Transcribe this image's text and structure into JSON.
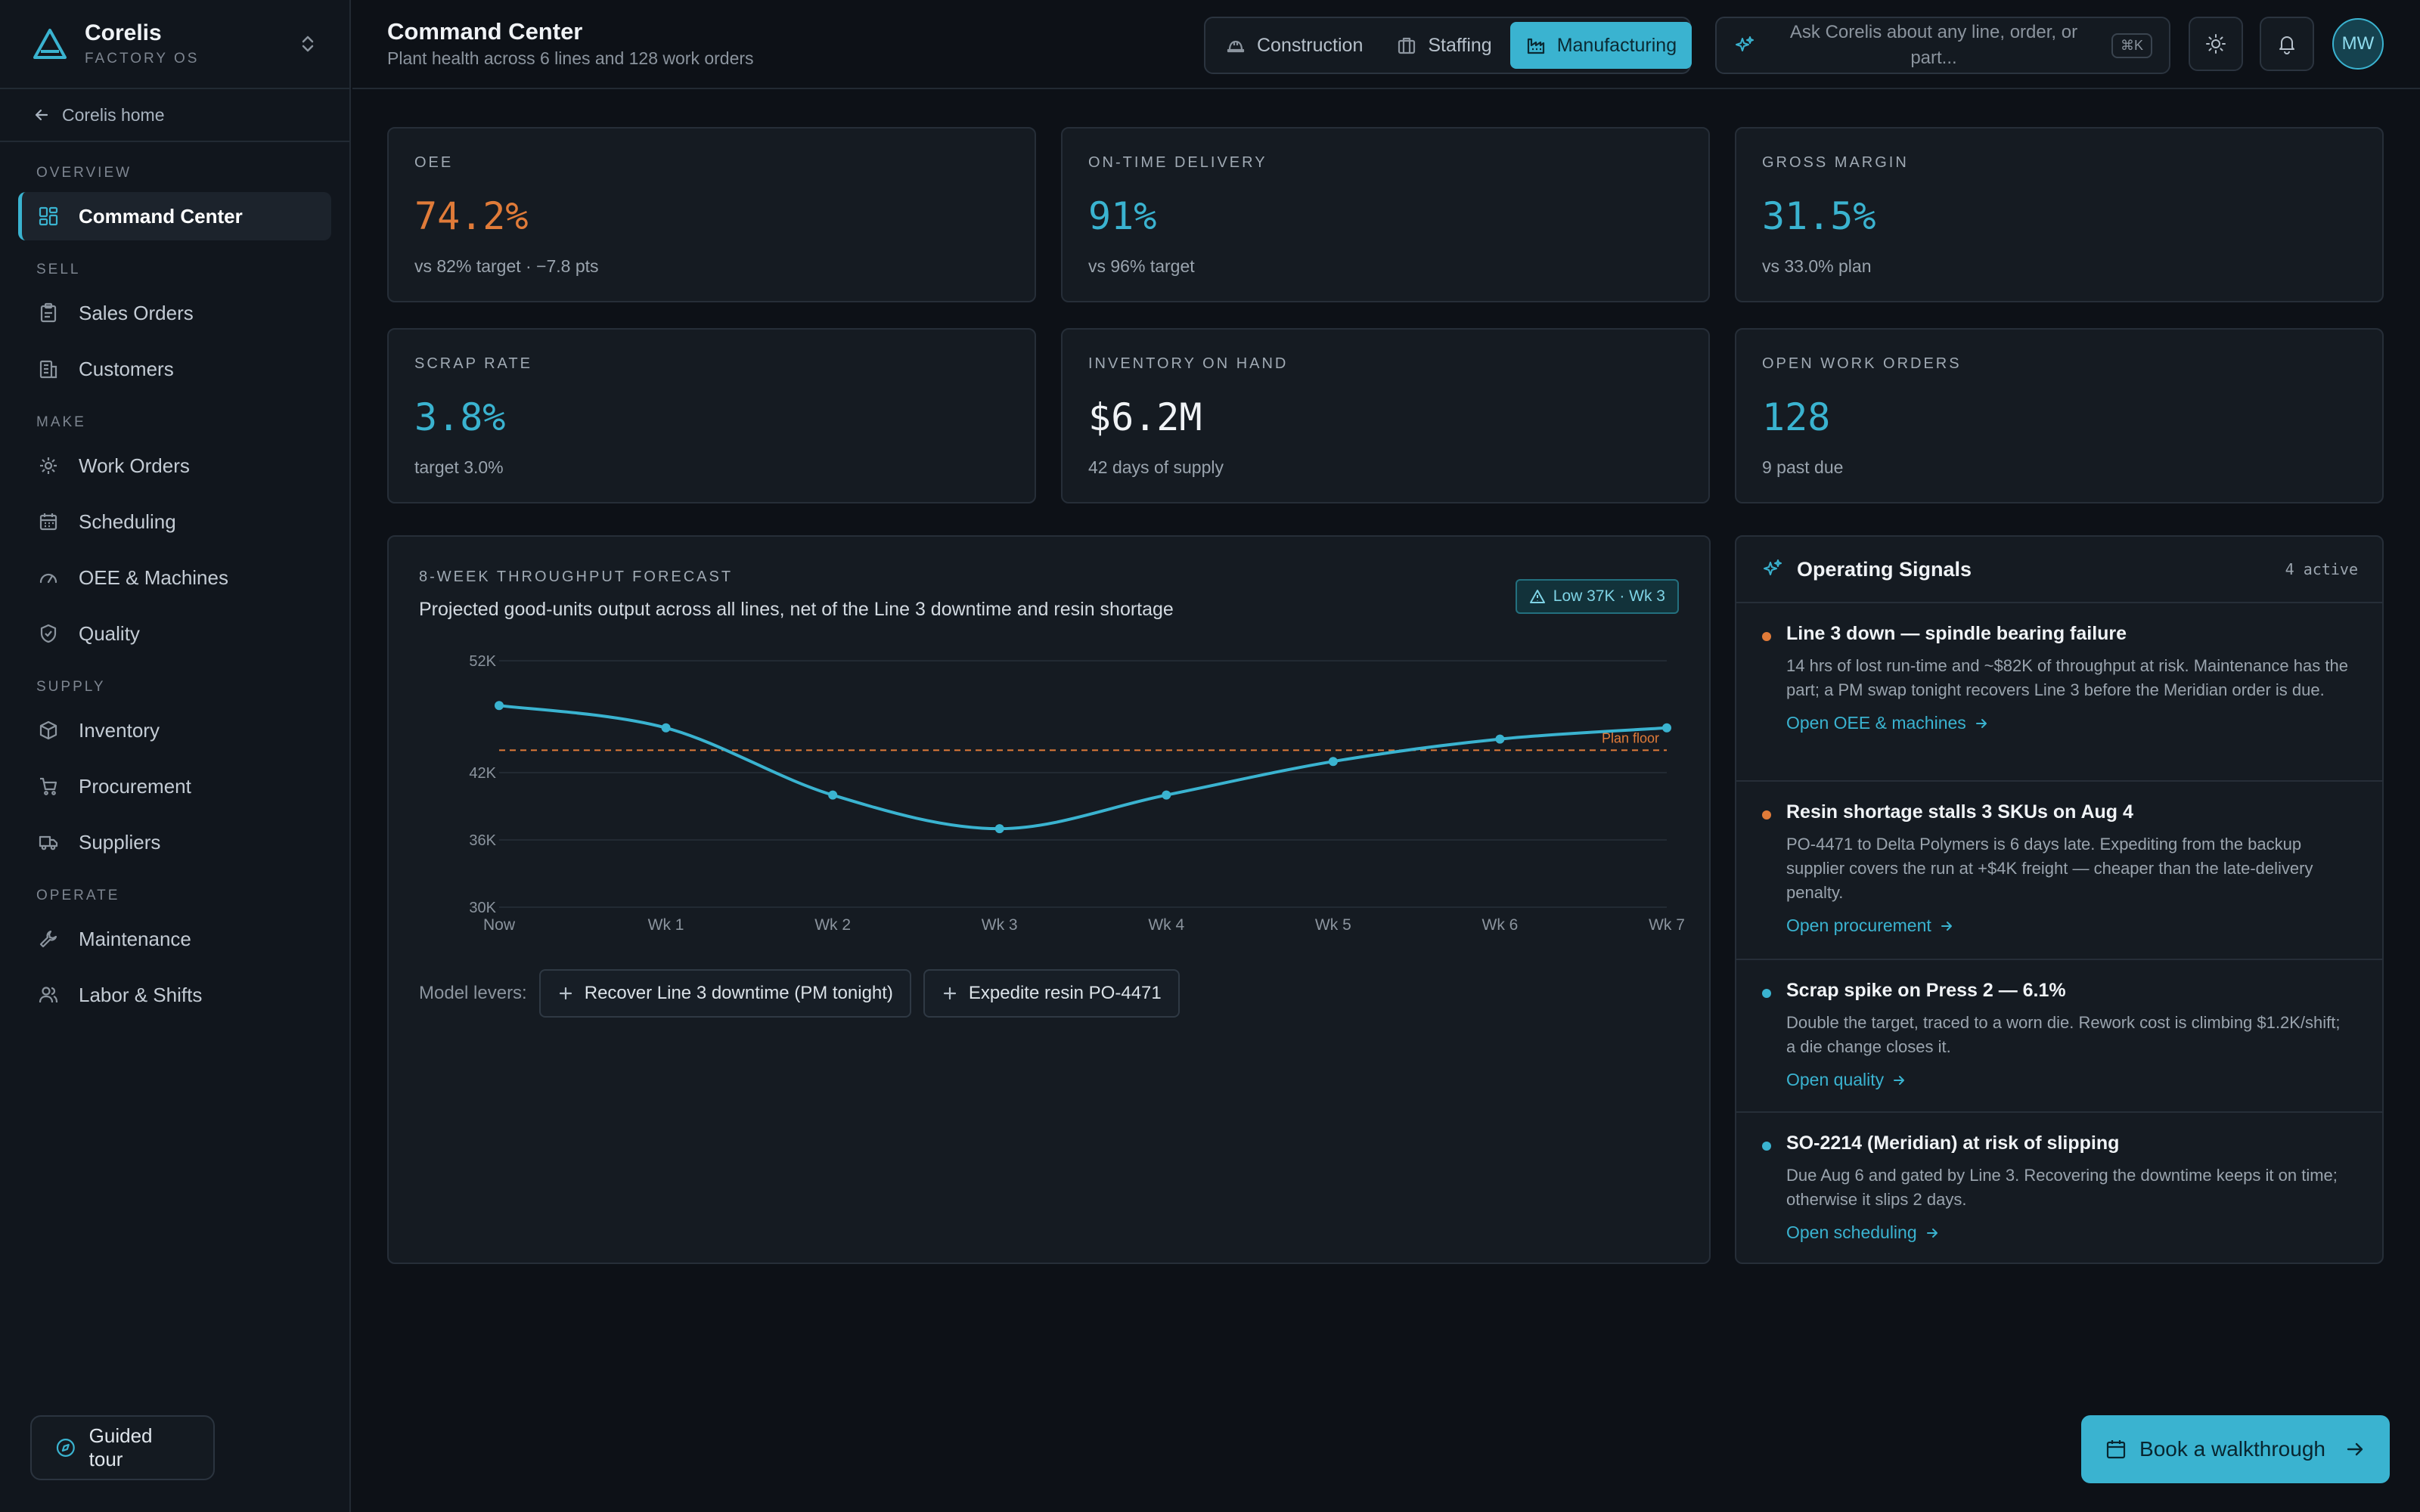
{
  "brand": {
    "name": "Corelis",
    "subtitle": "FACTORY OS"
  },
  "home_link": "Corelis home",
  "nav": {
    "overview": {
      "title": "OVERVIEW",
      "items": [
        {
          "label": "Command Center",
          "icon": "grid-icon"
        }
      ]
    },
    "sell": {
      "title": "SELL",
      "items": [
        {
          "label": "Sales Orders",
          "icon": "clipboard-icon"
        },
        {
          "label": "Customers",
          "icon": "building-icon"
        }
      ]
    },
    "make": {
      "title": "MAKE",
      "items": [
        {
          "label": "Work Orders",
          "icon": "gear-icon"
        },
        {
          "label": "Scheduling",
          "icon": "calendar-icon"
        },
        {
          "label": "OEE & Machines",
          "icon": "gauge-icon"
        },
        {
          "label": "Quality",
          "icon": "shield-check-icon"
        }
      ]
    },
    "supply": {
      "title": "SUPPLY",
      "items": [
        {
          "label": "Inventory",
          "icon": "box-icon"
        },
        {
          "label": "Procurement",
          "icon": "cart-icon"
        },
        {
          "label": "Suppliers",
          "icon": "truck-icon"
        }
      ]
    },
    "operate": {
      "title": "OPERATE",
      "items": [
        {
          "label": "Maintenance",
          "icon": "wrench-icon"
        },
        {
          "label": "Labor & Shifts",
          "icon": "users-icon"
        }
      ]
    }
  },
  "guided_tour": "Guided tour",
  "header": {
    "title": "Command Center",
    "subtitle": "Plant health across 6 lines and 128 work orders",
    "tabs": [
      {
        "label": "Construction",
        "icon": "hardhat-icon"
      },
      {
        "label": "Staffing",
        "icon": "briefcase-icon"
      },
      {
        "label": "Manufacturing",
        "icon": "factory-icon",
        "active": true
      }
    ],
    "ask_placeholder": "Ask Corelis about any line, order, or part...",
    "shortcut": "⌘K",
    "avatar": "MW"
  },
  "kpis": [
    {
      "label": "OEE",
      "value": "74.2%",
      "note": "vs 82% target · −7.8 pts",
      "color": "#e07b39"
    },
    {
      "label": "ON-TIME DELIVERY",
      "value": "91%",
      "note": "vs 96% target",
      "color": "#3ab3d0"
    },
    {
      "label": "GROSS MARGIN",
      "value": "31.5%",
      "note": "vs 33.0% plan",
      "color": "#3ab3d0"
    },
    {
      "label": "SCRAP RATE",
      "value": "3.8%",
      "note": "target 3.0%",
      "color": "#3ab3d0"
    },
    {
      "label": "INVENTORY ON HAND",
      "value": "$6.2M",
      "note": "42 days of supply",
      "color": "#f0f3f6"
    },
    {
      "label": "OPEN WORK ORDERS",
      "value": "128",
      "note": "9 past due",
      "color": "#3ab3d0"
    }
  ],
  "forecast": {
    "label": "8-WEEK THROUGHPUT FORECAST",
    "subtitle": "Projected good-units output across all lines, net of the Line 3 downtime and resin shortage",
    "badge": "Low 37K · Wk 3",
    "levers_label": "Model levers:",
    "levers": [
      "Recover Line 3 downtime (PM tonight)",
      "Expedite resin PO-4471"
    ]
  },
  "chart_data": {
    "type": "line",
    "x": [
      "Now",
      "Wk 1",
      "Wk 2",
      "Wk 3",
      "Wk 4",
      "Wk 5",
      "Wk 6",
      "Wk 7"
    ],
    "series": [
      {
        "values": [
          48000,
          46000,
          40000,
          37000,
          40000,
          43000,
          45000,
          46000
        ],
        "color": "#3ab3d0"
      }
    ],
    "reference_line": {
      "label": "Plan floor",
      "value": 44000,
      "color": "#e07b39"
    },
    "y_ticks": [
      30000,
      36000,
      42000,
      52000
    ],
    "y_tick_labels": [
      "30K",
      "36K",
      "42K",
      "52K"
    ],
    "ylim": [
      30000,
      52000
    ],
    "grid": true
  },
  "signals": {
    "title": "Operating Signals",
    "count": "4 active",
    "items": [
      {
        "title": "Line 3 down — spindle bearing failure",
        "body": "14 hrs of lost run-time and ~$82K of throughput at risk. Maintenance has the part; a PM swap tonight recovers Line 3 before the Meridian order is due.",
        "link": "Open OEE & machines",
        "color": "#e07b39"
      },
      {
        "title": "Resin shortage stalls 3 SKUs on Aug 4",
        "body": "PO-4471 to Delta Polymers is 6 days late. Expediting from the backup supplier covers the run at +$4K freight — cheaper than the late-delivery penalty.",
        "link": "Open procurement",
        "color": "#e07b39"
      },
      {
        "title": "Scrap spike on Press 2 — 6.1%",
        "body": "Double the target, traced to a worn die. Rework cost is climbing $1.2K/shift; a die change closes it.",
        "link": "Open quality",
        "color": "#3ab3d0"
      },
      {
        "title": "SO-2214 (Meridian) at risk of slipping",
        "body": "Due Aug 6 and gated by Line 3. Recovering the downtime keeps it on time; otherwise it slips 2 days.",
        "link": "Open scheduling",
        "color": "#3ab3d0"
      }
    ]
  },
  "cta": "Book a walkthrough"
}
